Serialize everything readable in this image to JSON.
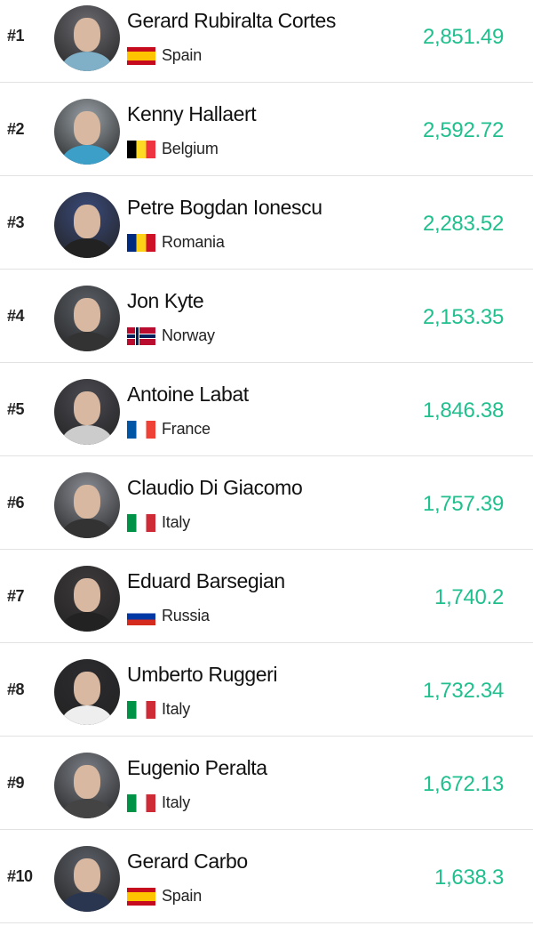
{
  "colors": {
    "score": "#20bf8e"
  },
  "players": [
    {
      "rank": "#1",
      "name": "Gerard Rubiralta Cortes",
      "country": "Spain",
      "flag": "spain-flag",
      "score": "2,851.49"
    },
    {
      "rank": "#2",
      "name": "Kenny Hallaert",
      "country": "Belgium",
      "flag": "belgium-flag",
      "score": "2,592.72"
    },
    {
      "rank": "#3",
      "name": "Petre Bogdan Ionescu",
      "country": "Romania",
      "flag": "romania-flag",
      "score": "2,283.52"
    },
    {
      "rank": "#4",
      "name": "Jon Kyte",
      "country": "Norway",
      "flag": "norway-flag",
      "score": "2,153.35"
    },
    {
      "rank": "#5",
      "name": "Antoine Labat",
      "country": "France",
      "flag": "france-flag",
      "score": "1,846.38"
    },
    {
      "rank": "#6",
      "name": "Claudio Di Giacomo",
      "country": "Italy",
      "flag": "italy-flag",
      "score": "1,757.39"
    },
    {
      "rank": "#7",
      "name": "Eduard Barsegian",
      "country": "Russia",
      "flag": "russia-flag",
      "score": "1,740.2"
    },
    {
      "rank": "#8",
      "name": "Umberto Ruggeri",
      "country": "Italy",
      "flag": "italy-flag",
      "score": "1,732.34"
    },
    {
      "rank": "#9",
      "name": "Eugenio Peralta",
      "country": "Italy",
      "flag": "italy-flag",
      "score": "1,672.13"
    },
    {
      "rank": "#10",
      "name": "Gerard Carbo",
      "country": "Spain",
      "flag": "spain-flag",
      "score": "1,638.3"
    }
  ]
}
